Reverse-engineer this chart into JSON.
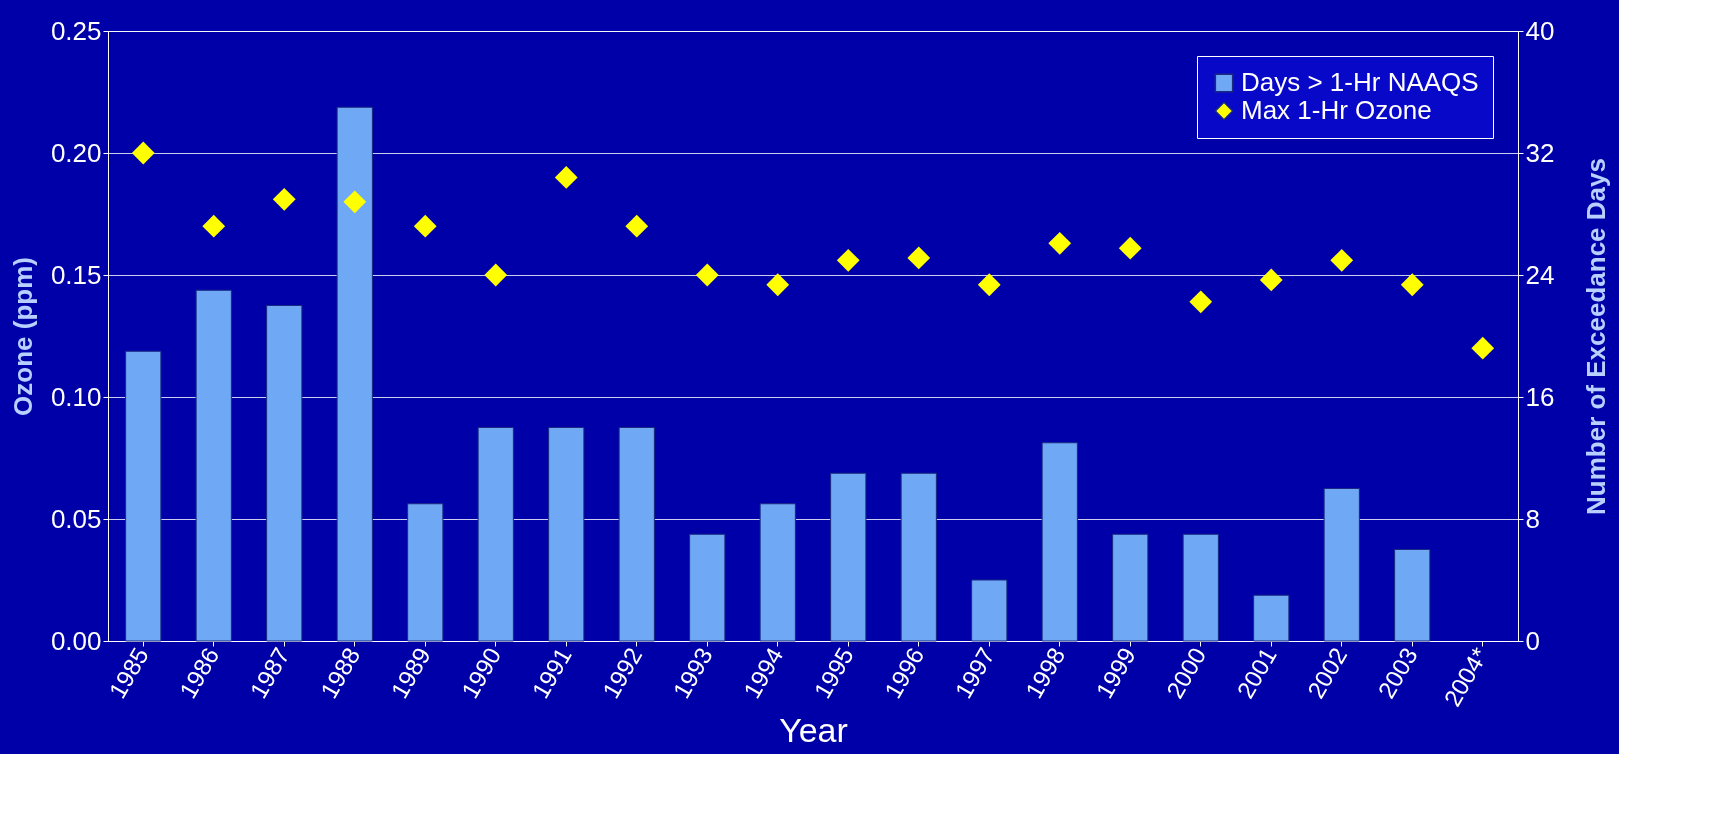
{
  "chart_data": {
    "type": "bar",
    "xlabel": "Year",
    "ylabel": "Ozone (ppm)",
    "y2label": "Number of Exceedance Days",
    "categories": [
      "1985",
      "1986",
      "1987",
      "1988",
      "1989",
      "1990",
      "1991",
      "1992",
      "1993",
      "1994",
      "1995",
      "1996",
      "1997",
      "1998",
      "1999",
      "2000",
      "2001",
      "2002",
      "2003",
      "2004*"
    ],
    "series": [
      {
        "name": "Days > 1-Hr NAAQS",
        "axis": "y2",
        "color": "#6fa8f5",
        "values": [
          19,
          23,
          22,
          35,
          9,
          14,
          14,
          14,
          7,
          9,
          11,
          11,
          4,
          13,
          7,
          7,
          3,
          10,
          6,
          null
        ]
      },
      {
        "name": "Max 1-Hr Ozone",
        "type": "scatter",
        "marker": "diamond",
        "color": "#ffff00",
        "values": [
          0.2,
          0.17,
          0.181,
          0.18,
          0.17,
          0.15,
          0.19,
          0.17,
          0.15,
          0.146,
          0.156,
          0.157,
          0.146,
          0.163,
          0.161,
          0.139,
          0.148,
          0.156,
          0.146,
          0.12
        ]
      }
    ],
    "ylim": [
      0,
      0.25
    ],
    "yticks": [
      {
        "value": 0,
        "label": "0.00"
      },
      {
        "value": 0.05,
        "label": "0.05"
      },
      {
        "value": 0.1,
        "label": "0.10"
      },
      {
        "value": 0.15,
        "label": "0.15"
      },
      {
        "value": 0.2,
        "label": "0.20"
      },
      {
        "value": 0.25,
        "label": "0.25"
      }
    ],
    "y2lim": [
      0,
      40
    ],
    "y2ticks": [
      0,
      8,
      16,
      24,
      32,
      40
    ],
    "grid": "y",
    "legend": "top right"
  }
}
